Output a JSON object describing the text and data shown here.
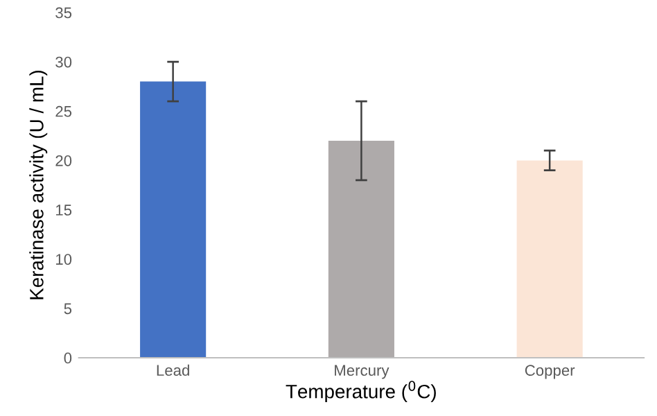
{
  "chart_data": {
    "type": "bar",
    "xlabel": "Temperature ($^{0}$C)",
    "ylabel": "Keratinase activity (U / mL)",
    "categories": [
      "Lead",
      "Mercury",
      "Copper"
    ],
    "values": [
      28,
      22,
      20
    ],
    "errors": [
      2,
      4,
      1
    ],
    "colors": [
      "#4472c4",
      "#aeaaaa",
      "#fbe5d6"
    ],
    "ylim": [
      0,
      35
    ],
    "yticks": [
      0,
      5,
      10,
      15,
      20,
      25,
      30,
      35
    ],
    "grid": false
  }
}
